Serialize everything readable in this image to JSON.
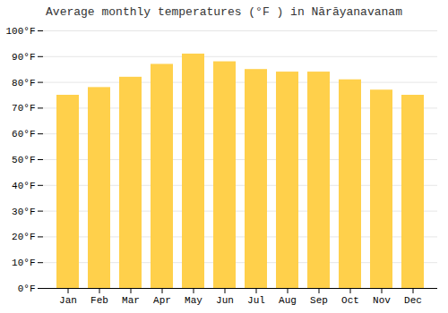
{
  "chart_data": {
    "type": "bar",
    "title": "Average monthly temperatures (°F ) in Nārāyanavanam",
    "categories": [
      "Jan",
      "Feb",
      "Mar",
      "Apr",
      "May",
      "Jun",
      "Jul",
      "Aug",
      "Sep",
      "Oct",
      "Nov",
      "Dec"
    ],
    "values": [
      75,
      78,
      82,
      87,
      91,
      88,
      85,
      84,
      84,
      81,
      77,
      75
    ],
    "color": "#FFD04B",
    "ylim": [
      0,
      100
    ],
    "yticks": [
      {
        "value": 0,
        "label": "0°F"
      },
      {
        "value": 10,
        "label": "10°F"
      },
      {
        "value": 20,
        "label": "20°F"
      },
      {
        "value": 30,
        "label": "30°F"
      },
      {
        "value": 40,
        "label": "40°F"
      },
      {
        "value": 50,
        "label": "50°F"
      },
      {
        "value": 60,
        "label": "60°F"
      },
      {
        "value": 70,
        "label": "70°F"
      },
      {
        "value": 80,
        "label": "80°F"
      },
      {
        "value": 90,
        "label": "90°F"
      },
      {
        "value": 100,
        "label": "100°F"
      }
    ],
    "grid": true
  }
}
